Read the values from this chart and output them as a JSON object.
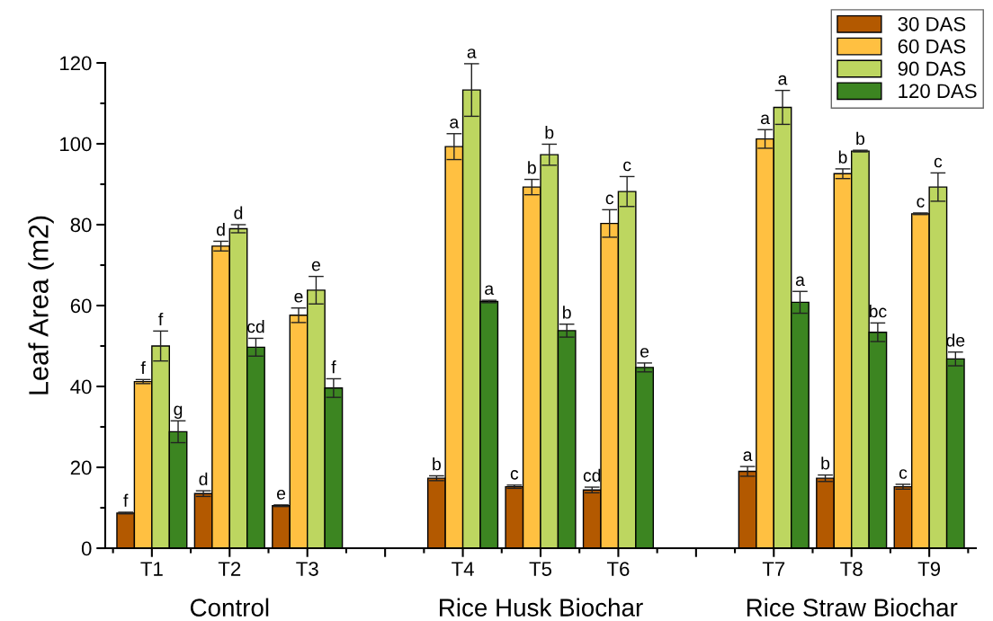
{
  "chart_data": {
    "type": "bar",
    "ylabel": "Leaf Area (m2)",
    "categories": [
      "T1",
      "T2",
      "T3",
      null,
      "T4",
      "T5",
      "T6",
      null,
      "T7",
      "T8",
      "T9"
    ],
    "series": [
      {
        "name": "30 DAS",
        "color": "#b35900",
        "values": [
          8.7,
          13.5,
          10.5,
          null,
          17.3,
          15.2,
          14.4,
          null,
          19.0,
          17.3,
          15.2
        ],
        "errors": [
          0.2,
          0.7,
          0.2,
          null,
          0.6,
          0.4,
          0.7,
          null,
          1.2,
          0.8,
          0.6
        ],
        "value_labels": [
          "f",
          "d",
          "e",
          null,
          "b",
          "c",
          "cd",
          null,
          "a",
          "b",
          "c"
        ]
      },
      {
        "name": "60 DAS",
        "color": "#ffc041",
        "values": [
          41.2,
          74.7,
          57.6,
          null,
          99.3,
          89.3,
          80.3,
          null,
          101.2,
          92.6,
          82.7
        ],
        "errors": [
          0.5,
          1.2,
          1.8,
          null,
          3.2,
          1.9,
          3.4,
          null,
          2.3,
          1.2,
          0.2
        ],
        "value_labels": [
          "f",
          "d",
          "e",
          null,
          "a",
          "b",
          "c",
          null,
          "a",
          "b",
          "c"
        ]
      },
      {
        "name": "90 DAS",
        "color": "#bdd660",
        "values": [
          50.0,
          79.0,
          63.8,
          null,
          113.3,
          97.3,
          88.2,
          null,
          109.0,
          98.2,
          89.3
        ],
        "errors": [
          3.7,
          1.0,
          3.4,
          null,
          6.5,
          2.6,
          3.7,
          null,
          4.2,
          0.2,
          3.5
        ],
        "value_labels": [
          "f",
          "d",
          "e",
          null,
          "a",
          "b",
          "c",
          null,
          "a",
          "b",
          "c"
        ]
      },
      {
        "name": "120 DAS",
        "color": "#3c8521",
        "values": [
          28.8,
          49.7,
          39.6,
          null,
          61.0,
          53.8,
          44.7,
          null,
          60.8,
          53.4,
          46.8
        ],
        "errors": [
          2.7,
          2.2,
          2.3,
          null,
          0.3,
          1.6,
          1.1,
          null,
          2.7,
          2.3,
          1.7
        ],
        "value_labels": [
          "g",
          "cd",
          "f",
          null,
          "a",
          "b",
          "e",
          null,
          "a",
          "bc",
          "de"
        ]
      }
    ],
    "ylim": [
      0,
      120
    ],
    "yticks": [
      0,
      20,
      40,
      60,
      80,
      100,
      120
    ],
    "grid": false,
    "legend": "top right",
    "annotations": [
      "Control",
      "Rice Husk Biochar",
      "Rice Straw Biochar"
    ]
  }
}
